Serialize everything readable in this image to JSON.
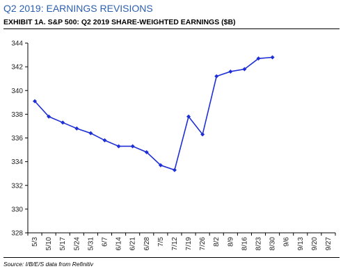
{
  "header": {
    "title": "Q2 2019: EARNINGS REVISIONS",
    "exhibit": "EXHIBIT 1A.  S&P 500: Q2 2019 SHARE-WEIGHTED EARNINGS ($B)"
  },
  "footer": {
    "source": "Source: I/B/E/S data from Refinitiv"
  },
  "colors": {
    "line": "#1f2fd6",
    "title": "#2a5fb0"
  },
  "chart_data": {
    "type": "line",
    "title": "EXHIBIT 1A.  S&P 500: Q2 2019 SHARE-WEIGHTED EARNINGS ($B)",
    "xlabel": "",
    "ylabel": "",
    "x_ticks": [
      "5/3",
      "5/10",
      "5/17",
      "5/24",
      "5/31",
      "6/7",
      "6/14",
      "6/21",
      "6/28",
      "7/5",
      "7/12",
      "7/19",
      "7/26",
      "8/2",
      "8/9",
      "8/16",
      "8/23",
      "8/30",
      "9/6",
      "9/13",
      "9/20",
      "9/27"
    ],
    "ylim": [
      328,
      344
    ],
    "y_ticks": [
      328,
      330,
      332,
      334,
      336,
      338,
      340,
      342,
      344
    ],
    "grid": false,
    "series": [
      {
        "x": [
          "5/3",
          "5/10",
          "5/17",
          "5/24",
          "5/31",
          "6/7",
          "6/14",
          "6/21",
          "6/28",
          "7/5",
          "7/12",
          "7/19",
          "7/26",
          "8/2",
          "8/9",
          "8/16",
          "8/23",
          "8/30"
        ],
        "values": [
          339.1,
          337.8,
          337.3,
          336.8,
          336.4,
          335.8,
          335.3,
          335.3,
          334.8,
          333.7,
          333.3,
          337.8,
          336.3,
          341.2,
          341.6,
          341.8,
          342.7,
          342.8
        ],
        "marker": "diamond"
      }
    ]
  }
}
